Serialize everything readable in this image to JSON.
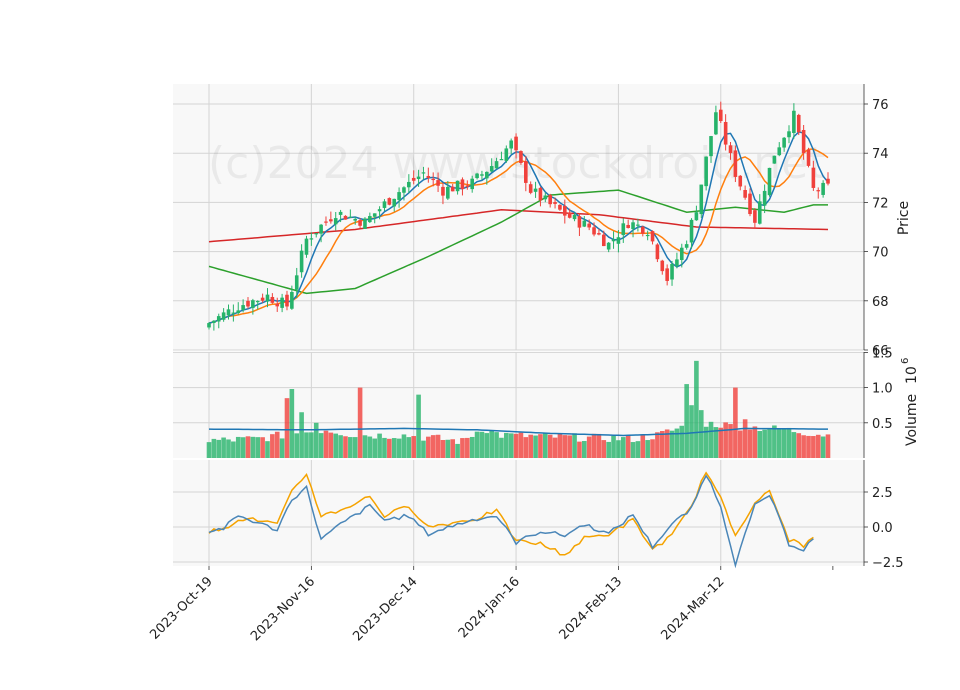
{
  "chart_data": {
    "type": "candlestick",
    "watermark": "(c)2024 www.stockdroid.net",
    "colors": {
      "background": "#f8f8f8",
      "grid": "#d4d4d4",
      "up": "#26b36a",
      "down": "#f0413c",
      "ma_fast": "#1f77b4",
      "ma_mid": "#ff7f0e",
      "ma_slow": "#2ca02c",
      "ma_long": "#d62728",
      "volume_ma": "#1f77b4",
      "osc_a": "#f5a300",
      "osc_b": "#4a86b8"
    },
    "x_tick_labels": [
      "2023-Oct-19",
      "2023-Nov-16",
      "2023-Dec-14",
      "2024-Jan-16",
      "2024-Feb-13",
      "2024-Mar-12"
    ],
    "panels": {
      "price": {
        "ylabel": "Price",
        "ylim": [
          66,
          76.8
        ],
        "yticks": [
          "66",
          "68",
          "70",
          "72",
          "74",
          "76"
        ]
      },
      "volume": {
        "ylabel": "Volume",
        "multiplier": "10",
        "exponent": "6",
        "ylim": [
          0,
          1.4
        ],
        "yticks": [
          "0.5",
          "1.0",
          "1.5"
        ]
      },
      "oscillator": {
        "ylim": [
          -3.1,
          5.5
        ],
        "yticks": [
          "−2.5",
          "0.0",
          "2.5"
        ]
      }
    },
    "price_anchors": [
      [
        0,
        67.1
      ],
      [
        6,
        67.8
      ],
      [
        12,
        68.2
      ],
      [
        16,
        67.8
      ],
      [
        20,
        70.5
      ],
      [
        26,
        71.6
      ],
      [
        32,
        71.2
      ],
      [
        38,
        72.3
      ],
      [
        44,
        73.2
      ],
      [
        48,
        72.5
      ],
      [
        54,
        72.8
      ],
      [
        58,
        73.5
      ],
      [
        62,
        74.4
      ],
      [
        66,
        72.5
      ],
      [
        70,
        71.9
      ],
      [
        74,
        71.4
      ],
      [
        78,
        71.0
      ],
      [
        82,
        70.3
      ],
      [
        86,
        71.2
      ],
      [
        90,
        70.9
      ],
      [
        94,
        68.9
      ],
      [
        98,
        70.5
      ],
      [
        100,
        71.8
      ],
      [
        104,
        75.7
      ],
      [
        108,
        73.2
      ],
      [
        112,
        71.3
      ],
      [
        116,
        74.0
      ],
      [
        120,
        75.5
      ],
      [
        124,
        72.5
      ],
      [
        127,
        72.6
      ]
    ],
    "volume_anchors": [
      [
        0,
        0.22
      ],
      [
        10,
        0.25
      ],
      [
        18,
        0.33
      ],
      [
        24,
        0.38
      ],
      [
        30,
        0.3
      ],
      [
        40,
        0.3
      ],
      [
        46,
        0.26
      ],
      [
        52,
        0.21
      ],
      [
        56,
        0.4
      ],
      [
        60,
        0.3
      ],
      [
        70,
        0.28
      ],
      [
        80,
        0.26
      ],
      [
        88,
        0.25
      ],
      [
        92,
        0.3
      ],
      [
        100,
        0.48
      ],
      [
        110,
        0.42
      ],
      [
        118,
        0.38
      ],
      [
        127,
        0.3
      ]
    ],
    "volume_spikes": [
      [
        16,
        0.85
      ],
      [
        17,
        0.98
      ],
      [
        19,
        0.65
      ],
      [
        22,
        0.5
      ],
      [
        31,
        1.0
      ],
      [
        43,
        0.9
      ],
      [
        62,
        0.35
      ],
      [
        98,
        1.05
      ],
      [
        99,
        0.75
      ],
      [
        100,
        1.38
      ],
      [
        101,
        0.68
      ],
      [
        108,
        1.0
      ],
      [
        110,
        0.55
      ]
    ],
    "oscillator_anchors": [
      [
        0,
        -0.3,
        -0.3
      ],
      [
        3,
        -0.2,
        -0.1
      ],
      [
        6,
        0.6,
        0.8
      ],
      [
        10,
        0.5,
        0.3
      ],
      [
        14,
        0.2,
        -0.2
      ],
      [
        17,
        2.5,
        2.0
      ],
      [
        20,
        3.8,
        2.8
      ],
      [
        23,
        0.8,
        -0.9
      ],
      [
        27,
        1.2,
        0.2
      ],
      [
        33,
        2.2,
        1.5
      ],
      [
        36,
        0.8,
        0.5
      ],
      [
        41,
        1.5,
        0.8
      ],
      [
        45,
        0.0,
        -0.5
      ],
      [
        50,
        0.3,
        0.1
      ],
      [
        55,
        0.6,
        0.6
      ],
      [
        59,
        1.2,
        0.8
      ],
      [
        63,
        -1.0,
        -1.1
      ],
      [
        68,
        -1.2,
        -0.3
      ],
      [
        73,
        -2.0,
        -0.6
      ],
      [
        77,
        -0.8,
        0.2
      ],
      [
        82,
        -0.5,
        -0.5
      ],
      [
        87,
        0.5,
        0.9
      ],
      [
        91,
        -1.6,
        -1.4
      ],
      [
        95,
        -0.6,
        0.2
      ],
      [
        99,
        1.5,
        1.3
      ],
      [
        102,
        4.0,
        3.8
      ],
      [
        105,
        2.0,
        1.5
      ],
      [
        108,
        -0.6,
        -2.6
      ],
      [
        112,
        1.8,
        1.5
      ],
      [
        115,
        2.5,
        2.3
      ],
      [
        119,
        -0.9,
        -1.2
      ],
      [
        122,
        -1.3,
        -1.6
      ],
      [
        124,
        -0.8,
        -0.8
      ]
    ]
  }
}
